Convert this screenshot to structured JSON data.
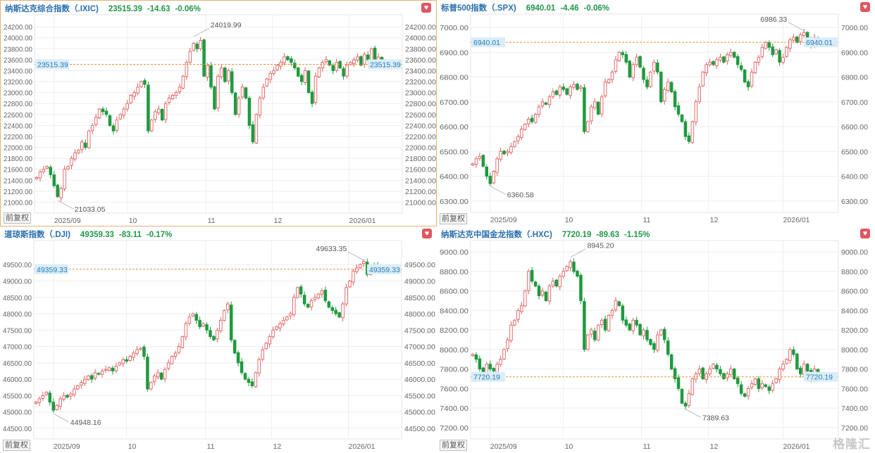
{
  "colors": {
    "up": "#e0605f",
    "down": "#1f9a3f",
    "price_line": "#e8913a",
    "name": "#2a6fae",
    "change": "#22964a",
    "grid": "#eeeeee",
    "axis_text": "#666666",
    "price_label_bg": "#d9edf9",
    "price_label_text": "#2a7ab0"
  },
  "adjust_label": "前复权",
  "watermark": "格隆汇",
  "chart_data": [
    {
      "type": "candlestick",
      "title": "纳斯达克综合指数（.IXIC)",
      "price": "23515.39",
      "change": "-14.63",
      "change_pct": "-0.06%",
      "last": 23515.39,
      "ylim": [
        20800,
        24420
      ],
      "yticks": [
        21000,
        21200,
        21400,
        21600,
        21800,
        22000,
        22200,
        22400,
        22600,
        22800,
        23000,
        23200,
        23400,
        23600,
        23800,
        24000,
        24200
      ],
      "xticks": [
        {
          "label": "2025/09",
          "index": 5
        },
        {
          "label": "10",
          "index": 26
        },
        {
          "label": "11",
          "index": 48.6
        },
        {
          "label": "12",
          "index": 67.6
        },
        {
          "label": "2026/01",
          "index": 89.6
        }
      ],
      "high_mark": {
        "label": "24019.99",
        "value": 24019.99,
        "index": 45
      },
      "low_mark": {
        "label": "21033.05",
        "value": 21033.05,
        "index": 6
      },
      "closes": [
        21450,
        21550,
        21600,
        21650,
        21500,
        21300,
        21100,
        21250,
        21600,
        21650,
        21800,
        21900,
        21950,
        22100,
        22000,
        22300,
        22400,
        22550,
        22700,
        22650,
        22600,
        22400,
        22300,
        22500,
        22600,
        22700,
        22800,
        22950,
        23000,
        23100,
        23200,
        23150,
        22300,
        22500,
        22650,
        22700,
        22500,
        22800,
        22900,
        22950,
        23000,
        23100,
        23300,
        23550,
        23750,
        23900,
        23800,
        23950,
        23300,
        23500,
        23100,
        22700,
        23300,
        23450,
        23200,
        23400,
        23000,
        22600,
        22900,
        23100,
        22900,
        22400,
        22100,
        22600,
        22900,
        23100,
        23250,
        23350,
        23400,
        23500,
        23550,
        23650,
        23600,
        23550,
        23450,
        23300,
        23200,
        23400,
        23000,
        22800,
        23300,
        23450,
        23550,
        23600,
        23500,
        23400,
        23550,
        23450,
        23300,
        23500,
        23550,
        23600,
        23650,
        23500,
        23700,
        23600,
        23800,
        23550,
        23650,
        23515.39
      ]
    },
    {
      "type": "candlestick",
      "title": "标普500指数（.SPX)",
      "price": "6940.01",
      "change": "-4.46",
      "change_pct": "-0.06%",
      "last": 6940.01,
      "ylim": [
        6254,
        7054
      ],
      "yticks": [
        6300,
        6400,
        6500,
        6600,
        6700,
        6800,
        6900,
        7000
      ],
      "xticks": [
        {
          "label": "2025/09",
          "index": 5
        },
        {
          "label": "10",
          "index": 26
        },
        {
          "label": "11",
          "index": 48.4
        },
        {
          "label": "12",
          "index": 67.6
        },
        {
          "label": "2026/01",
          "index": 89
        }
      ],
      "high_mark": {
        "label": "6986.33",
        "value": 6986.33,
        "index": 95
      },
      "low_mark": {
        "label": "6360.58",
        "value": 6360.58,
        "index": 5
      },
      "closes": [
        6450,
        6470,
        6480,
        6440,
        6400,
        6370,
        6420,
        6470,
        6500,
        6490,
        6500,
        6520,
        6540,
        6560,
        6590,
        6610,
        6630,
        6620,
        6650,
        6680,
        6700,
        6690,
        6720,
        6740,
        6730,
        6760,
        6750,
        6730,
        6760,
        6770,
        6750,
        6760,
        6580,
        6620,
        6680,
        6700,
        6650,
        6720,
        6780,
        6790,
        6820,
        6870,
        6900,
        6890,
        6860,
        6800,
        6850,
        6880,
        6840,
        6790,
        6760,
        6820,
        6860,
        6820,
        6700,
        6750,
        6780,
        6740,
        6680,
        6650,
        6620,
        6560,
        6540,
        6620,
        6700,
        6760,
        6820,
        6850,
        6860,
        6850,
        6870,
        6880,
        6860,
        6890,
        6900,
        6880,
        6850,
        6830,
        6780,
        6760,
        6820,
        6860,
        6880,
        6920,
        6940,
        6920,
        6890,
        6910,
        6860,
        6880,
        6920,
        6950,
        6960,
        6940,
        6970,
        6980,
        6950,
        6930,
        6960,
        6940.01
      ]
    },
    {
      "type": "candlestick",
      "title": "道琼斯指数（.DJI)",
      "price": "49359.33",
      "change": "-83.11",
      "change_pct": "-0.17%",
      "last": 49359.33,
      "ylim": [
        44175,
        50236
      ],
      "yticks": [
        44500,
        45000,
        45500,
        46000,
        46500,
        47000,
        47500,
        48000,
        48500,
        49000,
        49500
      ],
      "xticks": [
        {
          "label": "2025/09",
          "index": 5
        },
        {
          "label": "10",
          "index": 26
        },
        {
          "label": "11",
          "index": 48.6
        },
        {
          "label": "12",
          "index": 67.6
        },
        {
          "label": "2026/01",
          "index": 89.6
        }
      ],
      "high_mark": {
        "label": "49633.35",
        "value": 49633.35,
        "index": 94
      },
      "low_mark": {
        "label": "44948.16",
        "value": 44948.16,
        "index": 5
      },
      "closes": [
        45300,
        45400,
        45500,
        45600,
        45300,
        45050,
        45200,
        45400,
        45500,
        45450,
        45550,
        45700,
        45800,
        45900,
        46000,
        46100,
        46000,
        46200,
        46150,
        46250,
        46300,
        46350,
        46250,
        46400,
        46500,
        46600,
        46550,
        46700,
        46800,
        46900,
        46950,
        46700,
        45700,
        45900,
        46100,
        46200,
        46000,
        46300,
        46500,
        46700,
        46800,
        47000,
        47300,
        47700,
        47900,
        48000,
        47800,
        47600,
        47700,
        47500,
        47300,
        47200,
        47500,
        47800,
        48100,
        48300,
        47200,
        46800,
        46500,
        46200,
        46000,
        45900,
        45800,
        46200,
        46600,
        46900,
        47100,
        47300,
        47500,
        47600,
        47700,
        47800,
        47900,
        48000,
        48500,
        48800,
        48600,
        48300,
        48200,
        48400,
        48500,
        48600,
        48700,
        48400,
        48200,
        48100,
        48000,
        47900,
        48300,
        48800,
        49000,
        49300,
        49400,
        49500,
        49600,
        49200,
        49400,
        49500,
        49300,
        49359.33
      ]
    },
    {
      "type": "candlestick",
      "title": "纳斯达克中国金龙指数（.HXC)",
      "price": "7720.19",
      "change": "-89.63",
      "change_pct": "-1.15%",
      "last": 7720.19,
      "ylim": [
        7084,
        9116
      ],
      "yticks": [
        7200,
        7400,
        7600,
        7800,
        8000,
        8200,
        8400,
        8600,
        8800,
        9000
      ],
      "xticks": [
        {
          "label": "2025/09",
          "index": 5
        },
        {
          "label": "10",
          "index": 26
        },
        {
          "label": "11",
          "index": 48.4
        },
        {
          "label": "12",
          "index": 67.6
        },
        {
          "label": "2026/01",
          "index": 89
        }
      ],
      "high_mark": {
        "label": "8945.20",
        "value": 8945.2,
        "index": 28
      },
      "low_mark": {
        "label": "7389.63",
        "value": 7389.63,
        "index": 61
      },
      "closes": [
        7950,
        7900,
        7800,
        7750,
        7850,
        7800,
        7780,
        7850,
        7900,
        8000,
        8100,
        8250,
        8300,
        8400,
        8450,
        8600,
        8800,
        8700,
        8650,
        8550,
        8600,
        8500,
        8650,
        8700,
        8650,
        8750,
        8800,
        8850,
        8900,
        8800,
        8750,
        8500,
        8000,
        8150,
        8200,
        8100,
        8250,
        8300,
        8200,
        8350,
        8400,
        8500,
        8450,
        8300,
        8250,
        8200,
        8300,
        8250,
        8150,
        8200,
        8100,
        8050,
        8000,
        8150,
        8200,
        8100,
        7950,
        7800,
        7700,
        7600,
        7450,
        7420,
        7550,
        7700,
        7750,
        7800,
        7700,
        7750,
        7800,
        7850,
        7800,
        7750,
        7700,
        7750,
        7800,
        7700,
        7650,
        7550,
        7520,
        7600,
        7650,
        7700,
        7600,
        7650,
        7620,
        7580,
        7650,
        7700,
        7800,
        7850,
        7900,
        8000,
        7950,
        7800,
        7750,
        7850,
        7780,
        7700,
        7800,
        7720.19
      ]
    }
  ]
}
